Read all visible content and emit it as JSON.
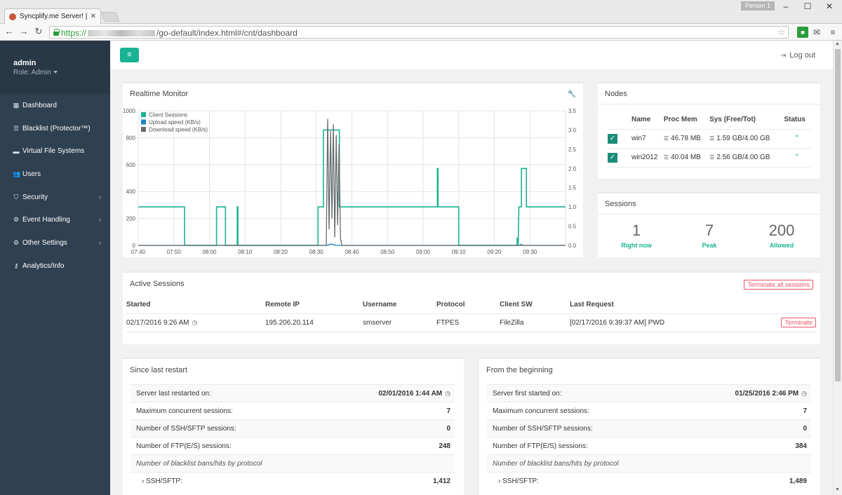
{
  "browser": {
    "tab_title": "Syncplify.me Server! | Serv",
    "tab_close": "✕",
    "person": "Person 1",
    "url_scheme": "https://",
    "url_path": "/go-default/index.html#/cnt/dashboard"
  },
  "sidebar": {
    "user": "admin",
    "role": "Role: Admin",
    "items": [
      {
        "label": "Dashboard",
        "icon": "grid-icon",
        "glyph": "▦",
        "chevron": ""
      },
      {
        "label": "Blacklist (Protector™)",
        "icon": "list-icon",
        "glyph": "☰",
        "chevron": ""
      },
      {
        "label": "Virtual File Systems",
        "icon": "folder-icon",
        "glyph": "▬",
        "chevron": ""
      },
      {
        "label": "Users",
        "icon": "users-icon",
        "glyph": "👥",
        "chevron": ""
      },
      {
        "label": "Security",
        "icon": "shield-icon",
        "glyph": "⛉",
        "chevron": "‹"
      },
      {
        "label": "Event Handling",
        "icon": "gear-icon",
        "glyph": "⚙",
        "chevron": "‹"
      },
      {
        "label": "Other Settings",
        "icon": "gears-icon",
        "glyph": "⚙",
        "chevron": "‹"
      },
      {
        "label": "Analytics/Info",
        "icon": "key-icon",
        "glyph": "⚷",
        "chevron": ""
      }
    ]
  },
  "topbar": {
    "menu_glyph": "≡",
    "logout_label": "Log out"
  },
  "realtime": {
    "title": "Realtime Monitor"
  },
  "chart_data": {
    "type": "line",
    "title": "Realtime Monitor",
    "x_ticks": [
      "07:40",
      "07:50",
      "08:00",
      "08:10",
      "08:20",
      "08:30",
      "08:40",
      "08:50",
      "09:00",
      "09:10",
      "09:20",
      "09:30"
    ],
    "y_left_ticks": [
      "0",
      "200",
      "400",
      "600",
      "800",
      "1000"
    ],
    "y_right_ticks": [
      "0.0",
      "0.5",
      "1.0",
      "1.5",
      "2.0",
      "2.5",
      "3.0",
      "3.5"
    ],
    "ylim_left": [
      0,
      1000
    ],
    "ylim_right": [
      0,
      3.5
    ],
    "xlim_minutes": [
      0,
      120
    ],
    "legend_position": "top-left",
    "grid": true,
    "series": [
      {
        "name": "Client Sessions",
        "color": "#1ab394",
        "axis": "right",
        "points": [
          [
            0,
            1
          ],
          [
            13,
            1
          ],
          [
            13,
            0
          ],
          [
            22,
            0
          ],
          [
            22,
            1
          ],
          [
            24.5,
            1
          ],
          [
            24.5,
            0
          ],
          [
            27.8,
            0
          ],
          [
            27.8,
            1
          ],
          [
            28,
            1
          ],
          [
            28,
            0
          ],
          [
            50.5,
            0
          ],
          [
            50.5,
            1
          ],
          [
            52,
            1
          ],
          [
            52,
            3
          ],
          [
            56.5,
            3
          ],
          [
            56.5,
            1
          ],
          [
            84,
            1
          ],
          [
            84,
            2
          ],
          [
            84.2,
            2
          ],
          [
            84.2,
            1
          ],
          [
            90,
            1
          ],
          [
            90,
            0
          ],
          [
            106.4,
            0
          ],
          [
            106.4,
            0.2
          ],
          [
            106.7,
            0
          ],
          [
            106.9,
            1
          ],
          [
            107.6,
            1
          ],
          [
            107.6,
            2
          ],
          [
            109,
            2
          ],
          [
            109,
            1
          ],
          [
            120,
            1
          ]
        ]
      },
      {
        "name": "Upload speed (KB/s)",
        "color": "#1c84c6",
        "axis": "left",
        "points": [
          [
            0,
            0
          ],
          [
            53,
            0
          ],
          [
            54,
            10
          ],
          [
            55,
            5
          ],
          [
            55.5,
            0
          ],
          [
            107,
            0
          ],
          [
            107.5,
            8
          ],
          [
            108,
            0
          ],
          [
            120,
            0
          ]
        ]
      },
      {
        "name": "Download speed (KB/s)",
        "color": "#676a6c",
        "axis": "left",
        "points": [
          [
            0,
            0
          ],
          [
            52.8,
            0
          ],
          [
            53.2,
            940
          ],
          [
            53.6,
            120
          ],
          [
            54,
            850
          ],
          [
            54.4,
            200
          ],
          [
            54.8,
            900
          ],
          [
            55.2,
            60
          ],
          [
            55.6,
            820
          ],
          [
            56,
            150
          ],
          [
            56.4,
            750
          ],
          [
            56.8,
            50
          ],
          [
            57.2,
            0
          ],
          [
            120,
            0
          ]
        ]
      }
    ]
  },
  "nodes": {
    "title": "Nodes",
    "headers": [
      "Name",
      "Proc Mem",
      "Sys (Free/Tot)",
      "Status"
    ],
    "rows": [
      {
        "name": "win7",
        "mem": "46.78 MB",
        "sys": "1.59 GB/4.00 GB"
      },
      {
        "name": "win2012",
        "mem": "40.04 MB",
        "sys": "2.56 GB/4.00 GB"
      }
    ]
  },
  "sessions": {
    "title": "Sessions",
    "stats": [
      {
        "value": "1",
        "label": "Right now"
      },
      {
        "value": "7",
        "label": "Peak"
      },
      {
        "value": "200",
        "label": "Allowed"
      }
    ]
  },
  "active": {
    "title": "Active Sessions",
    "terminate_all": "Terminate all sessions",
    "headers": [
      "Started",
      "Remote IP",
      "Username",
      "Protocol",
      "Client SW",
      "Last Request"
    ],
    "row": {
      "started": "02/17/2016 9:26 AM",
      "ip": "195.206.20.114",
      "user": "smserver",
      "protocol": "FTPES",
      "client": "FileZilla",
      "last": "[02/17/2016 9:39:37 AM] PWD",
      "terminate": "Terminate"
    }
  },
  "since_restart": {
    "title": "Since last restart",
    "rows": [
      {
        "k": "Server last restarted on:",
        "v": "02/01/2016 1:44 AM"
      },
      {
        "k": "Maximum concurrent sessions:",
        "v": "7"
      },
      {
        "k": "Number of SSH/SFTP sessions:",
        "v": "0"
      },
      {
        "k": "Number of FTP(E/S) sessions:",
        "v": "248"
      },
      {
        "k": "Number of blacklist bans/hits by protocol",
        "v": ""
      },
      {
        "k": "› SSH/SFTP:",
        "v": "1,412"
      }
    ]
  },
  "from_beginning": {
    "title": "From the beginning",
    "rows": [
      {
        "k": "Server first started on:",
        "v": "01/25/2016 2:46 PM"
      },
      {
        "k": "Maximum concurrent sessions:",
        "v": "7"
      },
      {
        "k": "Number of SSH/SFTP sessions:",
        "v": "0"
      },
      {
        "k": "Number of FTP(E/S) sessions:",
        "v": "384"
      },
      {
        "k": "Number of blacklist bans/hits by protocol",
        "v": ""
      },
      {
        "k": "› SSH/SFTP:",
        "v": "1,489"
      }
    ]
  }
}
